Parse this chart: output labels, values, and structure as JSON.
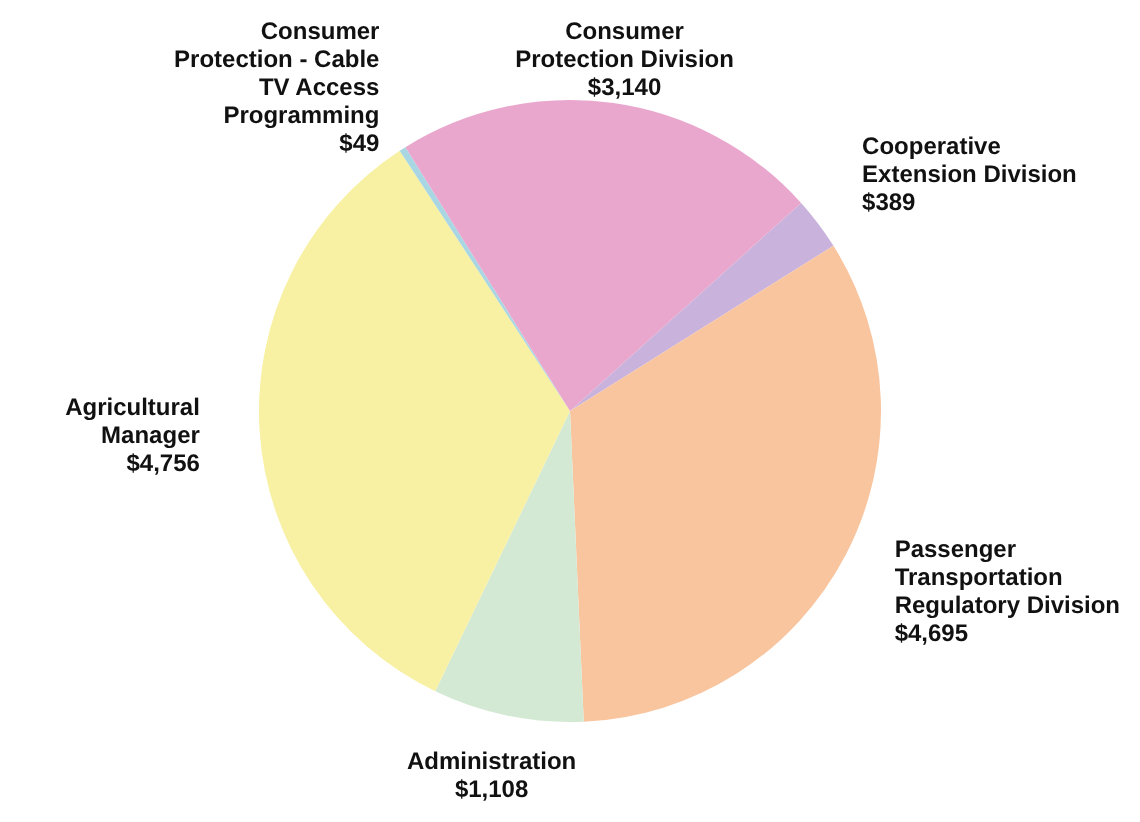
{
  "chart_data": {
    "type": "pie",
    "categories": [
      "Cooperative Extension Division",
      "Passenger Transportation Regulatory Division",
      "Administration",
      "Agricultural Manager",
      "Consumer Protection - Cable TV Access Programming",
      "Consumer Protection Division"
    ],
    "values": [
      389,
      4695,
      1108,
      4756,
      49,
      3140
    ],
    "value_labels": [
      "$389",
      "$4,695",
      "$1,108",
      "$4,756",
      "$49",
      "$3,140"
    ],
    "colors": [
      "#c9b3dd",
      "#f9c59f",
      "#d3e9d3",
      "#f8f1a3",
      "#a9d6e3",
      "#e9a7cd"
    ],
    "legend": false
  }
}
